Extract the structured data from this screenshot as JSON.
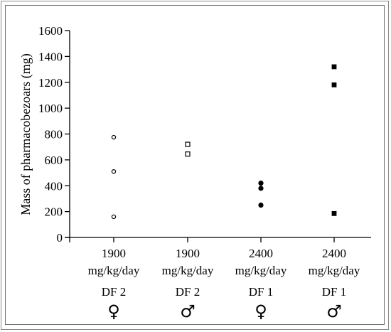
{
  "chart_data": {
    "type": "scatter",
    "ylabel": "Mass of pharmacobezoars (mg)",
    "ylim": [
      0,
      1600
    ],
    "y_ticks": [
      0,
      200,
      400,
      600,
      800,
      1000,
      1200,
      1400,
      1600
    ],
    "grid": false,
    "categories": [
      {
        "dose": "1900",
        "unit": "mg/kg/day",
        "group": "DF 2",
        "sex": "♀"
      },
      {
        "dose": "1900",
        "unit": "mg/kg/day",
        "group": "DF 2",
        "sex": "♂"
      },
      {
        "dose": "2400",
        "unit": "mg/kg/day",
        "group": "DF 1",
        "sex": "♀"
      },
      {
        "dose": "2400",
        "unit": "mg/kg/day",
        "group": "DF 1",
        "sex": "♂"
      }
    ],
    "series": [
      {
        "category_index": 0,
        "marker": "open-circle",
        "values": [
          775,
          510,
          160
        ]
      },
      {
        "category_index": 1,
        "marker": "open-square",
        "values": [
          720,
          645
        ]
      },
      {
        "category_index": 2,
        "marker": "filled-circle",
        "values": [
          420,
          380,
          250
        ]
      },
      {
        "category_index": 3,
        "marker": "filled-square",
        "values": [
          1320,
          1180,
          185
        ]
      }
    ]
  }
}
